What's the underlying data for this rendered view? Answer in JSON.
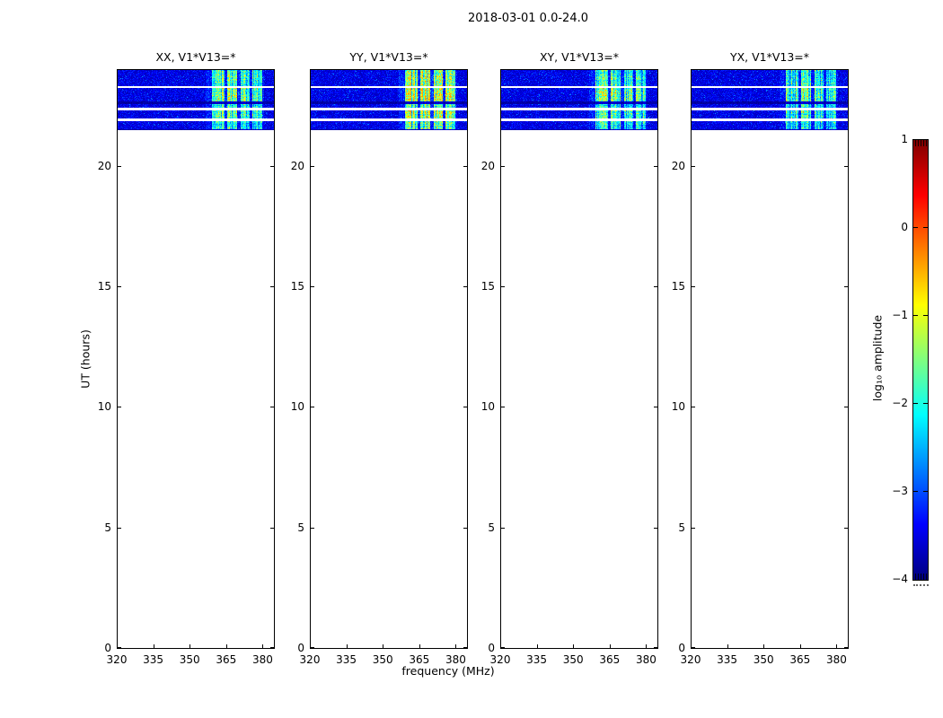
{
  "figure": {
    "title": "2018-03-01 0.0-24.0",
    "xlabel": "frequency (MHz)",
    "ylabel": "UT (hours)",
    "background_color": "#ffffff"
  },
  "colorbar": {
    "label": "log₁₀ amplitude",
    "ticks": [
      "1",
      "0",
      "−1",
      "−2",
      "−3",
      "−4"
    ],
    "colormap": "jet"
  },
  "chart_data": {
    "type": "heatmap",
    "title": "2018-03-01 0.0-24.0",
    "xlabel": "frequency (MHz)",
    "ylabel": "UT (hours)",
    "x_range_mhz": [
      320,
      385
    ],
    "x_ticks": [
      320,
      335,
      350,
      365,
      380
    ],
    "y_range_hours": [
      0,
      24
    ],
    "y_ticks": [
      0,
      5,
      10,
      15,
      20
    ],
    "colorbar": {
      "label": "log10 amplitude",
      "range": [
        -4,
        1
      ],
      "ticks": [
        1,
        0,
        -1,
        -2,
        -3,
        -4
      ],
      "colormap": "jet"
    },
    "panels": [
      {
        "pol": "xx",
        "title": "XX, V1*V13=*",
        "brightness": 1.0
      },
      {
        "pol": "yy",
        "title": "YY, V1*V13=*",
        "brightness": 1.25
      },
      {
        "pol": "xy",
        "title": "XY, V1*V13=*",
        "brightness": 1.0
      },
      {
        "pol": "yx",
        "title": "YX, V1*V13=*",
        "brightness": 0.92
      }
    ],
    "data_coverage_hours": [
      21.5,
      24.0
    ],
    "background_level_log10": -3.5,
    "rfi_level_log10": -2.0,
    "time_segments": [
      {
        "t0": 24.0,
        "t1": 23.34,
        "type": "noise",
        "band_mult": 1.0
      },
      {
        "t0": 23.34,
        "t1": 23.26,
        "type": "gap"
      },
      {
        "t0": 23.26,
        "t1": 22.71,
        "type": "noise",
        "band_mult": 1.2
      },
      {
        "t0": 22.71,
        "t1": 22.6,
        "type": "dark"
      },
      {
        "t0": 22.6,
        "t1": 22.45,
        "type": "noise",
        "band_mult": 0.85
      },
      {
        "t0": 22.45,
        "t1": 22.34,
        "type": "gap"
      },
      {
        "t0": 22.34,
        "t1": 22.0,
        "type": "noise",
        "band_mult": 1.05
      },
      {
        "t0": 22.0,
        "t1": 21.89,
        "type": "gap"
      },
      {
        "t0": 21.89,
        "t1": 21.55,
        "type": "noise",
        "band_mult": 0.9
      },
      {
        "t0": 21.55,
        "t1": 21.5,
        "type": "dark"
      }
    ],
    "rfi_bands_mhz": [
      {
        "f0": 356.5,
        "f1": 380.5,
        "strength": 0.05
      },
      {
        "f0": 358.8,
        "f1": 364.2,
        "strength": 0.3
      },
      {
        "f0": 365.2,
        "f1": 369.2,
        "strength": 0.32
      },
      {
        "f0": 370.8,
        "f1": 374.3,
        "strength": 0.27
      },
      {
        "f0": 375.6,
        "f1": 379.5,
        "strength": 0.25
      }
    ]
  }
}
